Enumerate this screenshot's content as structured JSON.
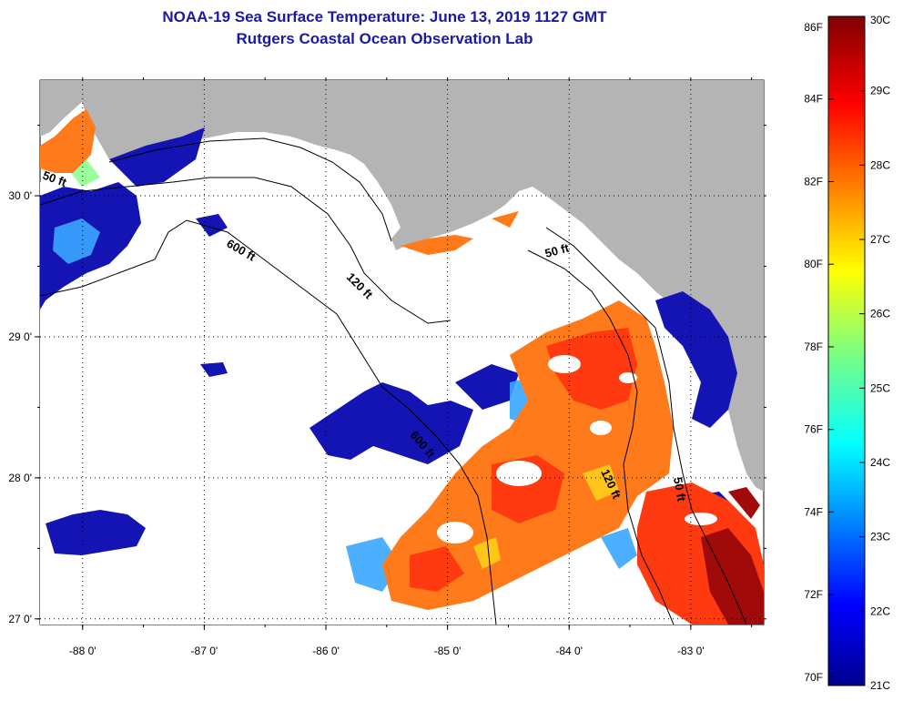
{
  "title": {
    "line1": "NOAA-19 Sea Surface Temperature:  June 13, 2019 1127 GMT",
    "line2": "Rutgers Coastal Ocean Observation Lab"
  },
  "axes": {
    "lon_ticks": [
      "-88 0'",
      "-87 0'",
      "-86 0'",
      "-85 0'",
      "-84 0'",
      "-83 0'"
    ],
    "lon_values": [
      -88,
      -87,
      -86,
      -85,
      -84,
      -83
    ],
    "lat_ticks": [
      "30 0'",
      "29 0'",
      "28 0'",
      "27 0'"
    ],
    "lat_values": [
      30,
      29,
      28,
      27
    ],
    "lon_range": [
      -88.35,
      -82.4
    ],
    "lat_range": [
      26.96,
      30.82
    ],
    "grid": "dotted"
  },
  "contours": [
    {
      "label": "50 ft"
    },
    {
      "label": "600 ft"
    },
    {
      "label": "120 ft"
    },
    {
      "label": "50 ft"
    },
    {
      "label": "600 ft"
    },
    {
      "label": "120 ft"
    },
    {
      "label": "50 ft"
    }
  ],
  "colorbar": {
    "fahrenheit": [
      "86F",
      "84F",
      "82F",
      "80F",
      "78F",
      "76F",
      "74F",
      "72F",
      "70F"
    ],
    "celsius": [
      "30C",
      "29C",
      "28C",
      "27C",
      "26C",
      "25C",
      "24C",
      "23C",
      "22C",
      "21C"
    ],
    "colormap": "jet",
    "range_c": [
      21,
      30
    ]
  },
  "colors": {
    "title": "#1a1aa6",
    "land": "#b4b4b4",
    "cloud": "#ffffff"
  }
}
